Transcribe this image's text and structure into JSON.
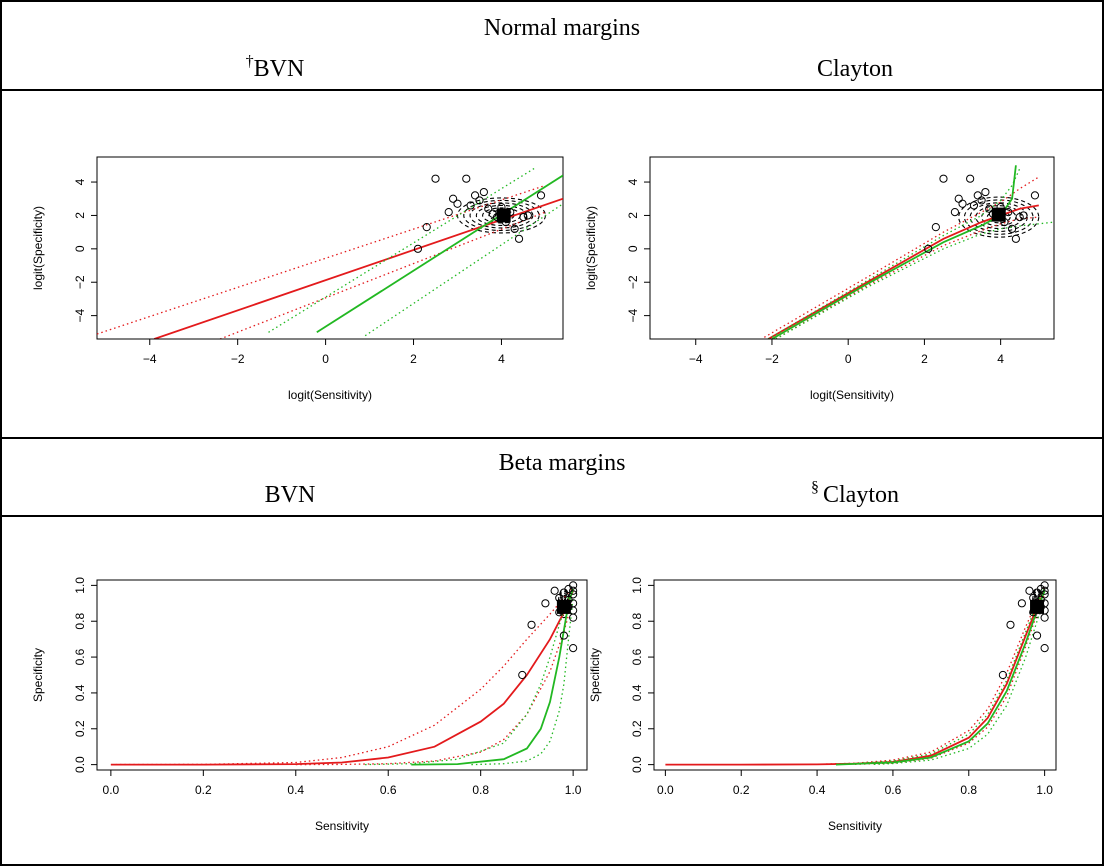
{
  "figure": {
    "top_section_title": "Normal margins",
    "bottom_section_title": "Beta margins",
    "panel_titles": [
      "BVN",
      "Clayton",
      "BVN",
      "Clayton"
    ],
    "panel_marks": [
      "†",
      "",
      "",
      "§"
    ]
  },
  "chart_data": [
    {
      "type": "scatter",
      "title": "BVN",
      "xlabel": "logit(Sensitivity)",
      "ylabel": "logit(Specificity)",
      "xlim": [
        -5.2,
        5.4
      ],
      "ylim": [
        -5.4,
        5.5
      ],
      "xticks": [
        -4,
        -2,
        0,
        2,
        4
      ],
      "yticks": [
        -4,
        -2,
        0,
        2,
        4
      ],
      "tick_labels_x": [
        "−4",
        "−2",
        "0",
        "2",
        "4"
      ],
      "tick_labels_y": [
        "−4",
        "−2",
        "0",
        "2",
        "4"
      ],
      "summary_point": [
        4.05,
        2.0
      ],
      "contour": {
        "cx": 4.0,
        "cy": 2.0,
        "rx": 1.0,
        "ry": 1.05
      },
      "points": [
        [
          2.1,
          0.0
        ],
        [
          2.3,
          1.3
        ],
        [
          2.5,
          4.2
        ],
        [
          2.8,
          2.2
        ],
        [
          2.9,
          3.0
        ],
        [
          3.0,
          2.7
        ],
        [
          3.2,
          4.2
        ],
        [
          3.3,
          2.6
        ],
        [
          3.4,
          3.2
        ],
        [
          3.5,
          2.9
        ],
        [
          3.6,
          3.4
        ],
        [
          3.7,
          2.4
        ],
        [
          3.8,
          2.1
        ],
        [
          3.9,
          1.9
        ],
        [
          4.0,
          2.5
        ],
        [
          4.1,
          1.6
        ],
        [
          4.2,
          2.2
        ],
        [
          4.3,
          1.2
        ],
        [
          4.4,
          0.6
        ],
        [
          4.5,
          1.9
        ],
        [
          4.6,
          2.0
        ],
        [
          4.9,
          3.2
        ]
      ],
      "series": [
        {
          "color": "#e31a1c",
          "style": "solid",
          "x": [
            -3.9,
            5.4
          ],
          "y": [
            -5.4,
            3.0
          ]
        },
        {
          "color": "#e31a1c",
          "style": "dotted",
          "x": [
            -5.2,
            5.0
          ],
          "y": [
            -5.1,
            3.8
          ]
        },
        {
          "color": "#e31a1c",
          "style": "dotted",
          "x": [
            -2.4,
            5.0
          ],
          "y": [
            -5.4,
            2.2
          ]
        },
        {
          "color": "#22b822",
          "style": "solid",
          "x": [
            -0.2,
            5.4
          ],
          "y": [
            -5.0,
            4.4
          ]
        },
        {
          "color": "#22b822",
          "style": "dotted",
          "x": [
            -1.3,
            4.8
          ],
          "y": [
            -5.0,
            4.9
          ]
        },
        {
          "color": "#22b822",
          "style": "dotted",
          "x": [
            0.9,
            5.4
          ],
          "y": [
            -5.2,
            2.7
          ]
        }
      ]
    },
    {
      "type": "scatter",
      "title": "Clayton",
      "xlabel": "logit(Sensitivity)",
      "ylabel": "logit(Specificity)",
      "xlim": [
        -5.2,
        5.4
      ],
      "ylim": [
        -5.4,
        5.5
      ],
      "xticks": [
        -4,
        -2,
        0,
        2,
        4
      ],
      "yticks": [
        -4,
        -2,
        0,
        2,
        4
      ],
      "tick_labels_x": [
        "−4",
        "−2",
        "0",
        "2",
        "4"
      ],
      "tick_labels_y": [
        "−4",
        "−2",
        "0",
        "2",
        "4"
      ],
      "summary_point": [
        3.95,
        2.05
      ],
      "contour": {
        "cx": 3.95,
        "cy": 1.9,
        "rx": 1.05,
        "ry": 1.2
      },
      "points": [
        [
          2.1,
          0.0
        ],
        [
          2.3,
          1.3
        ],
        [
          2.5,
          4.2
        ],
        [
          2.8,
          2.2
        ],
        [
          2.9,
          3.0
        ],
        [
          3.0,
          2.7
        ],
        [
          3.2,
          4.2
        ],
        [
          3.3,
          2.6
        ],
        [
          3.4,
          3.2
        ],
        [
          3.5,
          2.9
        ],
        [
          3.6,
          3.4
        ],
        [
          3.7,
          2.4
        ],
        [
          3.8,
          2.1
        ],
        [
          3.9,
          1.9
        ],
        [
          4.0,
          2.5
        ],
        [
          4.1,
          1.6
        ],
        [
          4.2,
          2.2
        ],
        [
          4.3,
          1.2
        ],
        [
          4.4,
          0.6
        ],
        [
          4.5,
          1.9
        ],
        [
          4.6,
          2.0
        ],
        [
          4.9,
          3.2
        ]
      ],
      "series": [
        {
          "color": "#e31a1c",
          "style": "solid",
          "x": [
            -2.1,
            0.5,
            2.5,
            3.5,
            4.0,
            4.5,
            5.0
          ],
          "y": [
            -5.4,
            -2.0,
            0.6,
            1.6,
            2.0,
            2.4,
            2.6
          ]
        },
        {
          "color": "#e31a1c",
          "style": "dotted",
          "x": [
            -2.2,
            0.5,
            2.5,
            3.5,
            4.0,
            4.5,
            5.0
          ],
          "y": [
            -5.3,
            -1.7,
            1.0,
            2.2,
            2.8,
            3.6,
            4.3
          ]
        },
        {
          "color": "#e31a1c",
          "style": "dotted",
          "x": [
            -1.9,
            0.5,
            2.5,
            3.5,
            4.0,
            4.5,
            5.0
          ],
          "y": [
            -5.4,
            -2.2,
            0.2,
            1.1,
            1.5,
            1.8,
            1.9
          ]
        },
        {
          "color": "#22b822",
          "style": "solid",
          "x": [
            -2.0,
            0.5,
            2.5,
            3.5,
            4.0,
            4.3,
            4.4
          ],
          "y": [
            -5.4,
            -2.1,
            0.4,
            1.4,
            2.0,
            3.0,
            5.0
          ]
        },
        {
          "color": "#22b822",
          "style": "dotted",
          "x": [
            -2.1,
            0.5,
            2.5,
            3.5,
            4.0,
            4.3,
            4.5
          ],
          "y": [
            -5.4,
            -1.9,
            0.8,
            2.0,
            2.9,
            3.8,
            4.8
          ]
        },
        {
          "color": "#22b822",
          "style": "dotted",
          "x": [
            -1.9,
            0.5,
            2.5,
            3.5,
            4.0,
            4.6,
            5.4
          ],
          "y": [
            -5.4,
            -2.3,
            0.0,
            0.9,
            1.2,
            1.4,
            1.6
          ]
        }
      ]
    },
    {
      "type": "scatter",
      "title": "BVN",
      "xlabel": "Sensitivity",
      "ylabel": "Specificity",
      "xlim": [
        -0.03,
        1.03
      ],
      "ylim": [
        -0.03,
        1.03
      ],
      "xticks": [
        0.0,
        0.2,
        0.4,
        0.6,
        0.8,
        1.0
      ],
      "yticks": [
        0.0,
        0.2,
        0.4,
        0.6,
        0.8,
        1.0
      ],
      "tick_labels_x": [
        "0.0",
        "0.2",
        "0.4",
        "0.6",
        "0.8",
        "1.0"
      ],
      "tick_labels_y": [
        "0.0",
        "0.2",
        "0.4",
        "0.6",
        "0.8",
        "1.0"
      ],
      "summary_point": [
        0.98,
        0.88
      ],
      "contour": {
        "cx": 0.98,
        "cy": 0.9,
        "rx": 0.012,
        "ry": 0.08
      },
      "points": [
        [
          0.89,
          0.5
        ],
        [
          0.91,
          0.78
        ],
        [
          0.94,
          0.9
        ],
        [
          0.96,
          0.97
        ],
        [
          0.97,
          0.93
        ],
        [
          0.97,
          0.85
        ],
        [
          0.98,
          0.72
        ],
        [
          0.98,
          0.96
        ],
        [
          0.99,
          0.88
        ],
        [
          0.99,
          0.98
        ],
        [
          0.99,
          0.92
        ],
        [
          1.0,
          1.0
        ],
        [
          1.0,
          0.97
        ],
        [
          1.0,
          0.95
        ],
        [
          1.0,
          0.9
        ],
        [
          1.0,
          0.86
        ],
        [
          1.0,
          0.82
        ],
        [
          1.0,
          0.65
        ]
      ],
      "series": [
        {
          "color": "#e31a1c",
          "style": "solid",
          "x": [
            0.0,
            0.2,
            0.4,
            0.5,
            0.6,
            0.7,
            0.8,
            0.85,
            0.9,
            0.95,
            0.98,
            1.0
          ],
          "y": [
            0.0,
            0.0,
            0.003,
            0.012,
            0.04,
            0.1,
            0.24,
            0.34,
            0.5,
            0.7,
            0.85,
            0.97
          ]
        },
        {
          "color": "#e31a1c",
          "style": "dotted",
          "x": [
            0.0,
            0.2,
            0.4,
            0.5,
            0.6,
            0.7,
            0.8,
            0.85,
            0.9,
            0.95,
            0.98,
            1.0
          ],
          "y": [
            0.0,
            0.001,
            0.012,
            0.04,
            0.1,
            0.22,
            0.42,
            0.55,
            0.7,
            0.84,
            0.93,
            0.99
          ]
        },
        {
          "color": "#e31a1c",
          "style": "dotted",
          "x": [
            0.4,
            0.5,
            0.6,
            0.7,
            0.8,
            0.85,
            0.9,
            0.95,
            0.98,
            1.0
          ],
          "y": [
            0.0,
            0.001,
            0.005,
            0.02,
            0.07,
            0.14,
            0.28,
            0.52,
            0.74,
            0.93
          ]
        },
        {
          "color": "#22b822",
          "style": "solid",
          "x": [
            0.65,
            0.75,
            0.85,
            0.9,
            0.93,
            0.95,
            0.97,
            0.98,
            0.99,
            1.0
          ],
          "y": [
            0.0,
            0.003,
            0.03,
            0.09,
            0.2,
            0.35,
            0.6,
            0.75,
            0.9,
            0.98
          ]
        },
        {
          "color": "#22b822",
          "style": "dotted",
          "x": [
            0.55,
            0.65,
            0.75,
            0.85,
            0.9,
            0.93,
            0.95,
            0.97,
            0.99,
            1.0
          ],
          "y": [
            0.0,
            0.005,
            0.03,
            0.12,
            0.28,
            0.45,
            0.6,
            0.78,
            0.94,
            0.99
          ]
        },
        {
          "color": "#22b822",
          "style": "dotted",
          "x": [
            0.78,
            0.85,
            0.9,
            0.93,
            0.95,
            0.97,
            0.98,
            0.99,
            1.0
          ],
          "y": [
            0.0,
            0.005,
            0.02,
            0.06,
            0.13,
            0.3,
            0.45,
            0.7,
            0.93
          ]
        }
      ]
    },
    {
      "type": "scatter",
      "title": "Clayton",
      "xlabel": "Sensitivity",
      "ylabel": "Specificity",
      "xlim": [
        -0.03,
        1.03
      ],
      "ylim": [
        -0.03,
        1.03
      ],
      "xticks": [
        0.0,
        0.2,
        0.4,
        0.6,
        0.8,
        1.0
      ],
      "yticks": [
        0.0,
        0.2,
        0.4,
        0.6,
        0.8,
        1.0
      ],
      "tick_labels_x": [
        "0.0",
        "0.2",
        "0.4",
        "0.6",
        "0.8",
        "1.0"
      ],
      "tick_labels_y": [
        "0.0",
        "0.2",
        "0.4",
        "0.6",
        "0.8",
        "1.0"
      ],
      "summary_point": [
        0.98,
        0.88
      ],
      "contour": {
        "cx": 0.98,
        "cy": 0.9,
        "rx": 0.012,
        "ry": 0.08
      },
      "points": [
        [
          0.89,
          0.5
        ],
        [
          0.91,
          0.78
        ],
        [
          0.94,
          0.9
        ],
        [
          0.96,
          0.97
        ],
        [
          0.97,
          0.93
        ],
        [
          0.97,
          0.85
        ],
        [
          0.98,
          0.72
        ],
        [
          0.98,
          0.96
        ],
        [
          0.99,
          0.88
        ],
        [
          0.99,
          0.98
        ],
        [
          0.99,
          0.92
        ],
        [
          1.0,
          1.0
        ],
        [
          1.0,
          0.97
        ],
        [
          1.0,
          0.95
        ],
        [
          1.0,
          0.9
        ],
        [
          1.0,
          0.86
        ],
        [
          1.0,
          0.82
        ],
        [
          1.0,
          0.65
        ]
      ],
      "series": [
        {
          "color": "#e31a1c",
          "style": "solid",
          "x": [
            0.0,
            0.2,
            0.4,
            0.5,
            0.6,
            0.7,
            0.8,
            0.85,
            0.9,
            0.95,
            0.98,
            1.0
          ],
          "y": [
            0.0,
            0.0,
            0.001,
            0.005,
            0.015,
            0.05,
            0.15,
            0.26,
            0.45,
            0.72,
            0.88,
            0.97
          ]
        },
        {
          "color": "#e31a1c",
          "style": "dotted",
          "x": [
            0.4,
            0.5,
            0.6,
            0.7,
            0.8,
            0.85,
            0.9,
            0.95,
            0.98,
            1.0
          ],
          "y": [
            0.002,
            0.008,
            0.025,
            0.07,
            0.19,
            0.31,
            0.51,
            0.77,
            0.91,
            0.99
          ]
        },
        {
          "color": "#e31a1c",
          "style": "dotted",
          "x": [
            0.5,
            0.6,
            0.7,
            0.8,
            0.85,
            0.9,
            0.95,
            0.98,
            1.0
          ],
          "y": [
            0.002,
            0.008,
            0.035,
            0.12,
            0.21,
            0.38,
            0.66,
            0.84,
            0.95
          ]
        },
        {
          "color": "#22b822",
          "style": "solid",
          "x": [
            0.45,
            0.5,
            0.6,
            0.7,
            0.8,
            0.85,
            0.9,
            0.95,
            0.98,
            1.0
          ],
          "y": [
            0.0,
            0.004,
            0.012,
            0.04,
            0.13,
            0.23,
            0.41,
            0.68,
            0.86,
            0.97
          ]
        },
        {
          "color": "#22b822",
          "style": "dotted",
          "x": [
            0.45,
            0.5,
            0.6,
            0.7,
            0.8,
            0.85,
            0.9,
            0.95,
            0.98,
            1.0
          ],
          "y": [
            0.0,
            0.006,
            0.02,
            0.06,
            0.17,
            0.28,
            0.47,
            0.74,
            0.9,
            0.99
          ]
        },
        {
          "color": "#22b822",
          "style": "dotted",
          "x": [
            0.55,
            0.6,
            0.7,
            0.8,
            0.85,
            0.9,
            0.95,
            0.98,
            1.0
          ],
          "y": [
            0.002,
            0.006,
            0.025,
            0.09,
            0.17,
            0.33,
            0.6,
            0.8,
            0.93
          ]
        }
      ]
    }
  ]
}
